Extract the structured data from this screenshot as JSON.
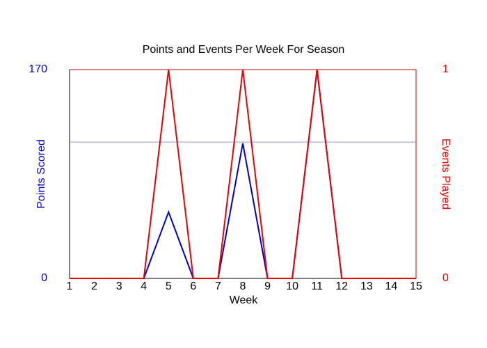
{
  "chart_data": {
    "type": "line",
    "title": "Points and Events Per Week For Season",
    "x_label": "Week",
    "y_label": "Points Scored",
    "y2_label": "Events Played",
    "x": [
      1,
      2,
      3,
      4,
      5,
      6,
      7,
      8,
      9,
      10,
      11,
      12,
      13,
      14,
      15
    ],
    "xlim": [
      1,
      15
    ],
    "xticks": [
      1,
      2,
      3,
      4,
      5,
      6,
      7,
      8,
      9,
      10,
      11,
      12,
      13,
      14,
      15
    ],
    "ylim": [
      0,
      170
    ],
    "yticks": [
      0,
      170
    ],
    "y2lim": [
      0,
      1
    ],
    "y2ticks": [
      0,
      1
    ],
    "reference_line": 111,
    "reference_color": "#9999cc",
    "series": [
      {
        "name": "Points Scored",
        "color": "#0000cc",
        "values": [
          0,
          0,
          0,
          0,
          54,
          0,
          0,
          110,
          0,
          0,
          170,
          0,
          0,
          0,
          0
        ]
      },
      {
        "name": "Events Played",
        "color": "#ee0000",
        "axis": "y2",
        "values": [
          0,
          0,
          0,
          0,
          1,
          0,
          0,
          1,
          0,
          0,
          1,
          0,
          0,
          0,
          0
        ]
      }
    ]
  }
}
